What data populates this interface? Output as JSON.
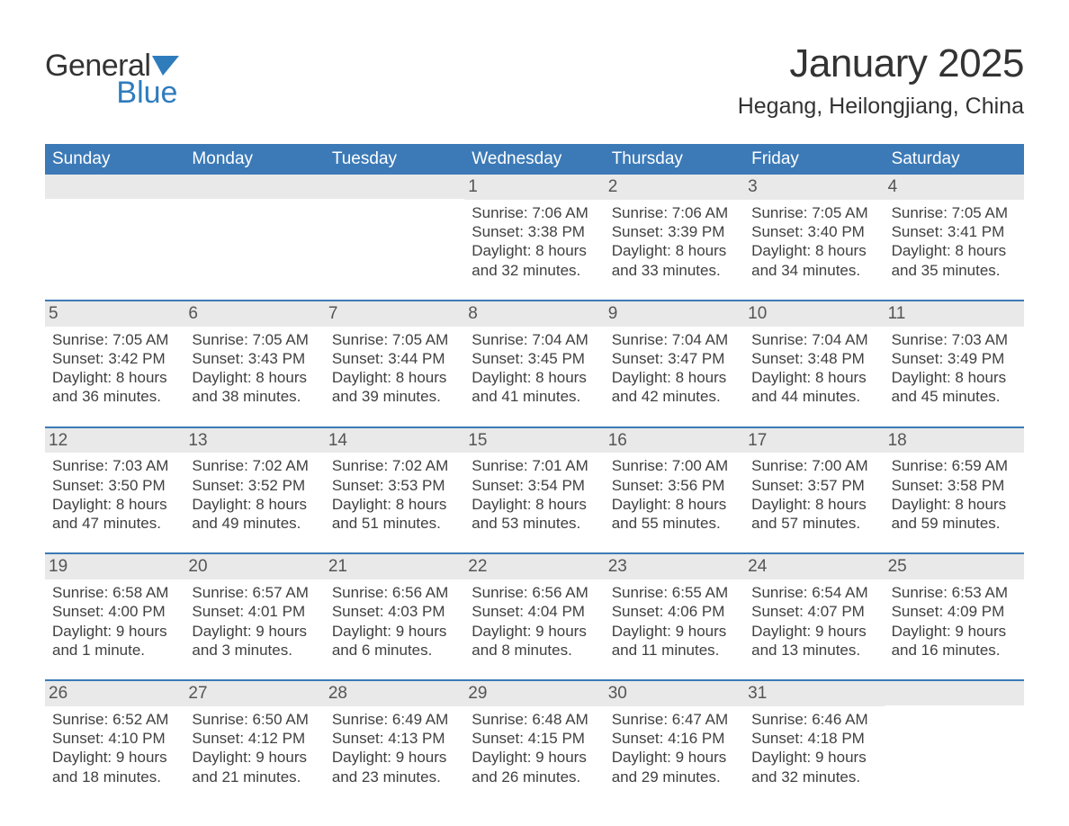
{
  "logo": {
    "text1": "General",
    "text2": "Blue",
    "flag_color": "#2f7cbd"
  },
  "title": {
    "month": "January 2025",
    "location": "Hegang, Heilongjiang, China"
  },
  "colors": {
    "header": "#3c7ab7",
    "row_border": "#3c7ab7",
    "shade": "#e9e9e9",
    "bg": "#ffffff"
  },
  "days_of_week": [
    "Sunday",
    "Monday",
    "Tuesday",
    "Wednesday",
    "Thursday",
    "Friday",
    "Saturday"
  ],
  "weeks": [
    [
      null,
      null,
      null,
      {
        "n": "1",
        "sunrise": "7:06 AM",
        "sunset": "3:38 PM",
        "daylight": "8 hours and 32 minutes."
      },
      {
        "n": "2",
        "sunrise": "7:06 AM",
        "sunset": "3:39 PM",
        "daylight": "8 hours and 33 minutes."
      },
      {
        "n": "3",
        "sunrise": "7:05 AM",
        "sunset": "3:40 PM",
        "daylight": "8 hours and 34 minutes."
      },
      {
        "n": "4",
        "sunrise": "7:05 AM",
        "sunset": "3:41 PM",
        "daylight": "8 hours and 35 minutes."
      }
    ],
    [
      {
        "n": "5",
        "sunrise": "7:05 AM",
        "sunset": "3:42 PM",
        "daylight": "8 hours and 36 minutes."
      },
      {
        "n": "6",
        "sunrise": "7:05 AM",
        "sunset": "3:43 PM",
        "daylight": "8 hours and 38 minutes."
      },
      {
        "n": "7",
        "sunrise": "7:05 AM",
        "sunset": "3:44 PM",
        "daylight": "8 hours and 39 minutes."
      },
      {
        "n": "8",
        "sunrise": "7:04 AM",
        "sunset": "3:45 PM",
        "daylight": "8 hours and 41 minutes."
      },
      {
        "n": "9",
        "sunrise": "7:04 AM",
        "sunset": "3:47 PM",
        "daylight": "8 hours and 42 minutes."
      },
      {
        "n": "10",
        "sunrise": "7:04 AM",
        "sunset": "3:48 PM",
        "daylight": "8 hours and 44 minutes."
      },
      {
        "n": "11",
        "sunrise": "7:03 AM",
        "sunset": "3:49 PM",
        "daylight": "8 hours and 45 minutes."
      }
    ],
    [
      {
        "n": "12",
        "sunrise": "7:03 AM",
        "sunset": "3:50 PM",
        "daylight": "8 hours and 47 minutes."
      },
      {
        "n": "13",
        "sunrise": "7:02 AM",
        "sunset": "3:52 PM",
        "daylight": "8 hours and 49 minutes."
      },
      {
        "n": "14",
        "sunrise": "7:02 AM",
        "sunset": "3:53 PM",
        "daylight": "8 hours and 51 minutes."
      },
      {
        "n": "15",
        "sunrise": "7:01 AM",
        "sunset": "3:54 PM",
        "daylight": "8 hours and 53 minutes."
      },
      {
        "n": "16",
        "sunrise": "7:00 AM",
        "sunset": "3:56 PM",
        "daylight": "8 hours and 55 minutes."
      },
      {
        "n": "17",
        "sunrise": "7:00 AM",
        "sunset": "3:57 PM",
        "daylight": "8 hours and 57 minutes."
      },
      {
        "n": "18",
        "sunrise": "6:59 AM",
        "sunset": "3:58 PM",
        "daylight": "8 hours and 59 minutes."
      }
    ],
    [
      {
        "n": "19",
        "sunrise": "6:58 AM",
        "sunset": "4:00 PM",
        "daylight": "9 hours and 1 minute."
      },
      {
        "n": "20",
        "sunrise": "6:57 AM",
        "sunset": "4:01 PM",
        "daylight": "9 hours and 3 minutes."
      },
      {
        "n": "21",
        "sunrise": "6:56 AM",
        "sunset": "4:03 PM",
        "daylight": "9 hours and 6 minutes."
      },
      {
        "n": "22",
        "sunrise": "6:56 AM",
        "sunset": "4:04 PM",
        "daylight": "9 hours and 8 minutes."
      },
      {
        "n": "23",
        "sunrise": "6:55 AM",
        "sunset": "4:06 PM",
        "daylight": "9 hours and 11 minutes."
      },
      {
        "n": "24",
        "sunrise": "6:54 AM",
        "sunset": "4:07 PM",
        "daylight": "9 hours and 13 minutes."
      },
      {
        "n": "25",
        "sunrise": "6:53 AM",
        "sunset": "4:09 PM",
        "daylight": "9 hours and 16 minutes."
      }
    ],
    [
      {
        "n": "26",
        "sunrise": "6:52 AM",
        "sunset": "4:10 PM",
        "daylight": "9 hours and 18 minutes."
      },
      {
        "n": "27",
        "sunrise": "6:50 AM",
        "sunset": "4:12 PM",
        "daylight": "9 hours and 21 minutes."
      },
      {
        "n": "28",
        "sunrise": "6:49 AM",
        "sunset": "4:13 PM",
        "daylight": "9 hours and 23 minutes."
      },
      {
        "n": "29",
        "sunrise": "6:48 AM",
        "sunset": "4:15 PM",
        "daylight": "9 hours and 26 minutes."
      },
      {
        "n": "30",
        "sunrise": "6:47 AM",
        "sunset": "4:16 PM",
        "daylight": "9 hours and 29 minutes."
      },
      {
        "n": "31",
        "sunrise": "6:46 AM",
        "sunset": "4:18 PM",
        "daylight": "9 hours and 32 minutes."
      },
      null
    ]
  ],
  "labels": {
    "sunrise": "Sunrise:",
    "sunset": "Sunset:",
    "daylight": "Daylight:"
  }
}
